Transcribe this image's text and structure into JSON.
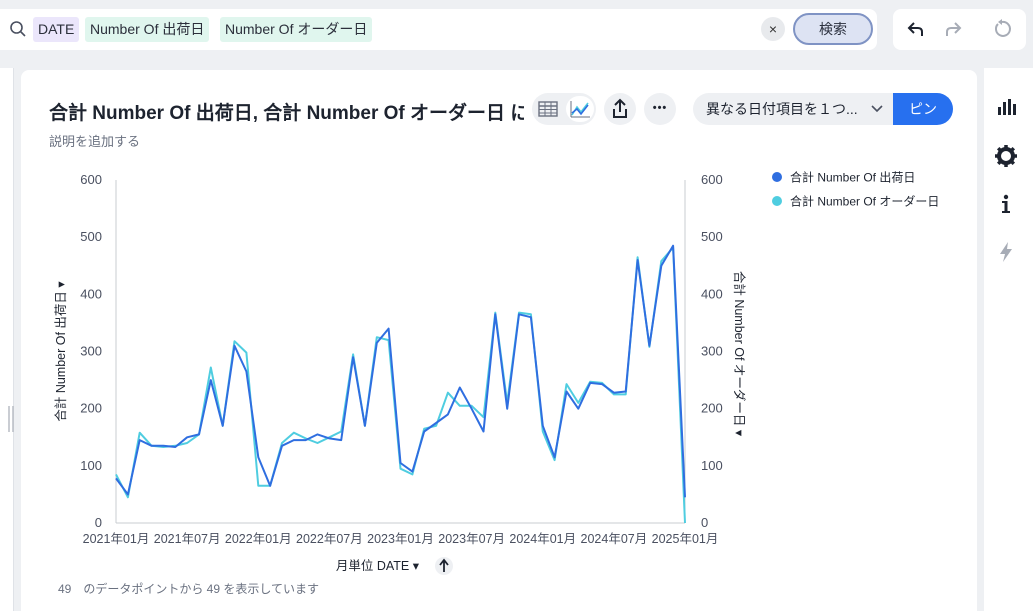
{
  "search": {
    "tokens": [
      "DATE",
      "Number Of 出荷日",
      "Number Of オーダー日"
    ],
    "clear_label": "×",
    "search_label": "検索"
  },
  "answer": {
    "title": "合計 Number Of 出荷日, 合計 Number Of オーダー日 に ...",
    "subtitle": "説明を追加する",
    "date_select": "異なる日付項目を１つ...",
    "pin_label": "ピン",
    "more_label": "•••",
    "footer": "49　のデータポイントから 49 を表示しています",
    "x_axis_label": "月単位 DATE"
  },
  "colors": {
    "series1": "#2f6ee0",
    "series2": "#4fcde0",
    "accent": "#2770ef"
  },
  "chart_data": {
    "type": "line",
    "title": "合計 Number Of 出荷日, 合計 Number Of オーダー日 に ...",
    "xlabel": "月単位 DATE",
    "ylabel": "合計 Number Of 出荷日",
    "ylabel_right": "合計 Number Of オーダー日",
    "ylim": [
      0,
      600
    ],
    "y_ticks": [
      0,
      100,
      200,
      300,
      400,
      500,
      600
    ],
    "grid": false,
    "legend": "top-right",
    "x_tick_labels": [
      "2021年01月",
      "2021年07月",
      "2022年01月",
      "2022年07月",
      "2023年01月",
      "2023年07月",
      "2024年01月",
      "2024年07月",
      "2025年01月"
    ],
    "x": [
      "2021-01",
      "2021-02",
      "2021-03",
      "2021-04",
      "2021-05",
      "2021-06",
      "2021-07",
      "2021-08",
      "2021-09",
      "2021-10",
      "2021-11",
      "2021-12",
      "2022-01",
      "2022-02",
      "2022-03",
      "2022-04",
      "2022-05",
      "2022-06",
      "2022-07",
      "2022-08",
      "2022-09",
      "2022-10",
      "2022-11",
      "2022-12",
      "2023-01",
      "2023-02",
      "2023-03",
      "2023-04",
      "2023-05",
      "2023-06",
      "2023-07",
      "2023-08",
      "2023-09",
      "2023-10",
      "2023-11",
      "2023-12",
      "2024-01",
      "2024-02",
      "2024-03",
      "2024-04",
      "2024-05",
      "2024-06",
      "2024-07",
      "2024-08",
      "2024-09",
      "2024-10",
      "2024-11",
      "2024-12",
      "2025-01"
    ],
    "series": [
      {
        "name": "合計 Number Of 出荷日",
        "values": [
          78,
          50,
          145,
          135,
          135,
          133,
          150,
          155,
          250,
          170,
          310,
          265,
          115,
          65,
          135,
          145,
          145,
          155,
          148,
          145,
          290,
          170,
          315,
          340,
          105,
          90,
          160,
          175,
          190,
          237,
          200,
          160,
          365,
          200,
          365,
          360,
          170,
          115,
          230,
          200,
          245,
          243,
          228,
          230,
          460,
          310,
          450,
          485,
          45
        ]
      },
      {
        "name": "合計 Number Of オーダー日",
        "values": [
          85,
          45,
          158,
          135,
          133,
          135,
          140,
          155,
          272,
          170,
          318,
          298,
          65,
          65,
          140,
          158,
          148,
          140,
          150,
          160,
          295,
          170,
          325,
          320,
          95,
          85,
          165,
          170,
          228,
          205,
          205,
          185,
          368,
          210,
          368,
          365,
          160,
          110,
          243,
          210,
          247,
          245,
          225,
          225,
          465,
          308,
          458,
          482,
          0
        ]
      }
    ]
  }
}
